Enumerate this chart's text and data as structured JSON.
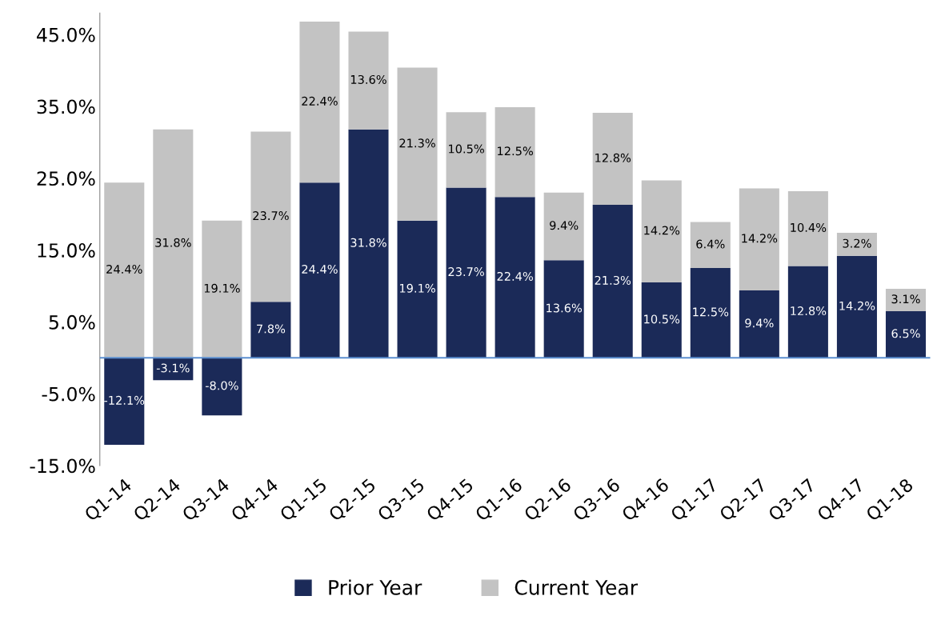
{
  "chart_data": {
    "type": "bar",
    "stacked": true,
    "categories": [
      "Q1-14",
      "Q2-14",
      "Q3-14",
      "Q4-14",
      "Q1-15",
      "Q2-15",
      "Q3-15",
      "Q4-15",
      "Q1-16",
      "Q2-16",
      "Q3-16",
      "Q4-16",
      "Q1-17",
      "Q2-17",
      "Q3-17",
      "Q4-17",
      "Q1-18"
    ],
    "series": [
      {
        "name": "Prior Year",
        "color": "#1b2a58",
        "values": [
          -12.1,
          -3.1,
          -8.0,
          7.8,
          24.4,
          31.8,
          19.1,
          23.7,
          22.4,
          13.6,
          21.3,
          10.5,
          12.5,
          9.4,
          12.8,
          14.2,
          6.5
        ],
        "value_labels": [
          "-12.1%",
          "-3.1%",
          "-8.0%",
          "7.8%",
          "24.4%",
          "31.8%",
          "19.1%",
          "23.7%",
          "22.4%",
          "13.6%",
          "21.3%",
          "10.5%",
          "12.5%",
          "9.4%",
          "12.8%",
          "14.2%",
          "6.5%"
        ]
      },
      {
        "name": "Current Year",
        "color": "#c3c3c3",
        "values": [
          24.4,
          31.8,
          19.1,
          23.7,
          22.4,
          13.6,
          21.3,
          10.5,
          12.5,
          9.4,
          12.8,
          14.2,
          6.4,
          14.2,
          10.4,
          3.2,
          3.1
        ],
        "value_labels": [
          "24.4%",
          "31.8%",
          "19.1%",
          "23.7%",
          "22.4%",
          "13.6%",
          "21.3%",
          "10.5%",
          "12.5%",
          "9.4%",
          "12.8%",
          "14.2%",
          "6.4%",
          "14.2%",
          "10.4%",
          "3.2%",
          "3.1%"
        ]
      }
    ],
    "ylim": [
      -15,
      48
    ],
    "yticks": [
      {
        "value": -15,
        "label": "-15.0%"
      },
      {
        "value": -5,
        "label": "-5.0%"
      },
      {
        "value": 5,
        "label": "5.0%"
      },
      {
        "value": 15,
        "label": "15.0%"
      },
      {
        "value": 25,
        "label": "25.0%"
      },
      {
        "value": 35,
        "label": "35.0%"
      },
      {
        "value": 45,
        "label": "45.0%"
      }
    ],
    "ref_lines": [
      {
        "axis": "y",
        "value": 0,
        "color": "#5b8fd0"
      }
    ],
    "legend": "bottom",
    "grid": false
  }
}
